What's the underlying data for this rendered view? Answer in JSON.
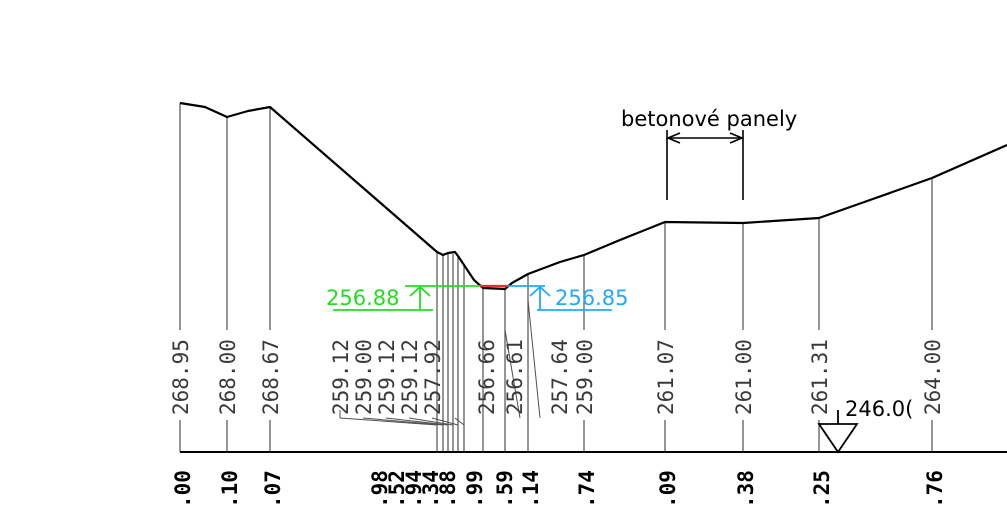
{
  "colors": {
    "terrain": "#000000",
    "grid": "#505050",
    "water_left": "#22dd22",
    "water_right": "#22a8ff",
    "channel": "#e03030",
    "background": "#ffffff"
  },
  "annotations": {
    "panels_label": "betonové panely",
    "water_left": "256.88",
    "water_right": "256.85",
    "datum": "246.0("
  },
  "elevations": [
    "268.95",
    "268.00",
    "268.67",
    "259.12",
    "259.00",
    "259.12",
    "259.12",
    "257.92",
    "256.66",
    "256.61",
    "257.64",
    "259.00",
    "261.07",
    "261.00",
    "261.31",
    "264.00"
  ],
  "distances": [
    ".00",
    ".10",
    ".07",
    ".98",
    ".52",
    ".94",
    ".34",
    ".88",
    ".99",
    ".59",
    ".14",
    ".74",
    ".09",
    ".38",
    ".25",
    ".76"
  ]
}
